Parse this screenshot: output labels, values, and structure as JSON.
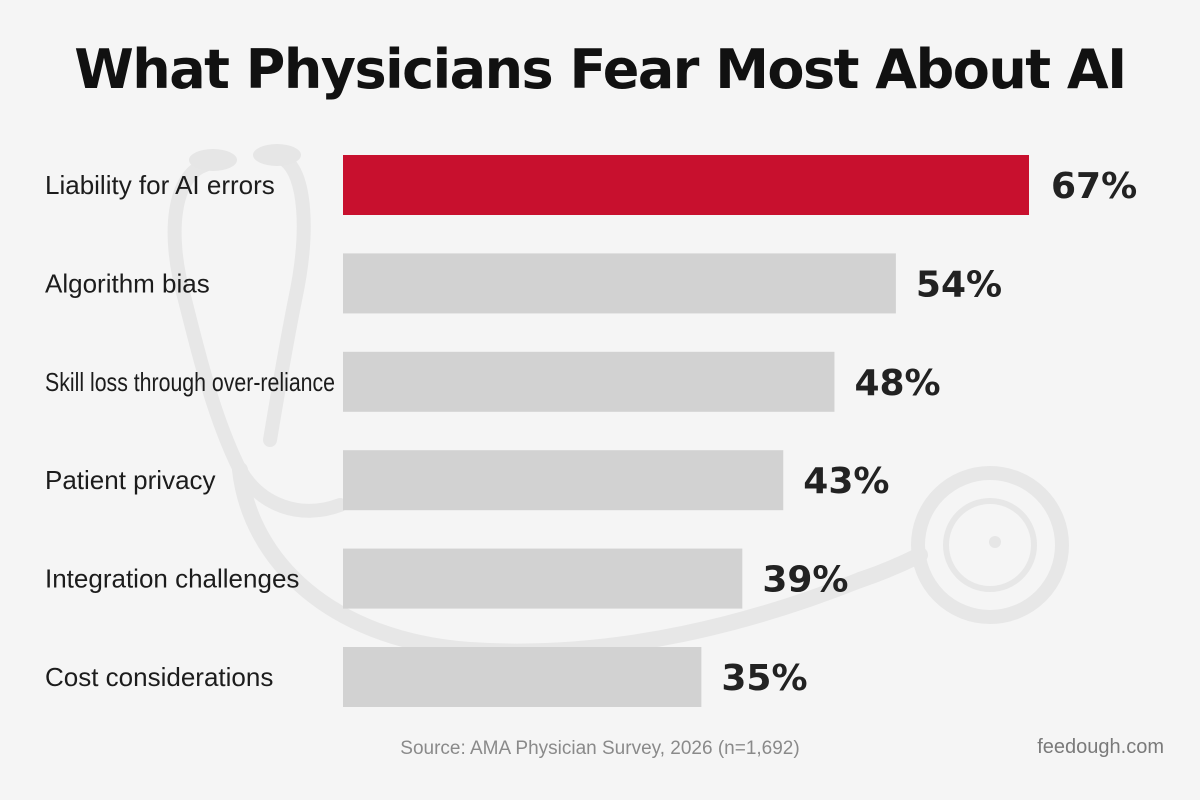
{
  "chart_data": {
    "type": "bar",
    "orientation": "horizontal",
    "title": "What Physicians Fear Most About AI",
    "categories": [
      "Liability for AI errors",
      "Algorithm bias",
      "Skill loss through over-reliance",
      "Patient privacy",
      "Integration challenges",
      "Cost considerations"
    ],
    "values": [
      67,
      54,
      48,
      43,
      39,
      35
    ],
    "value_labels": [
      "67%",
      "54%",
      "48%",
      "43%",
      "39%",
      "35%"
    ],
    "unit": "%",
    "xlim": [
      0,
      67
    ],
    "grid": false,
    "legend": "none",
    "highlight_index": 0
  },
  "colors": {
    "background": "#f5f5f5",
    "highlight_bar": "#c8102e",
    "highlight_value": "#f0b418",
    "bar": "#d2d2d2",
    "value_text": "#222222",
    "decor": "#e6e6e6"
  },
  "footer": {
    "source": "Source: AMA Physician Survey, 2026 (n=1,692)",
    "brand": "feedough.com"
  },
  "decoration": {
    "icon": "stethoscope-icon"
  }
}
